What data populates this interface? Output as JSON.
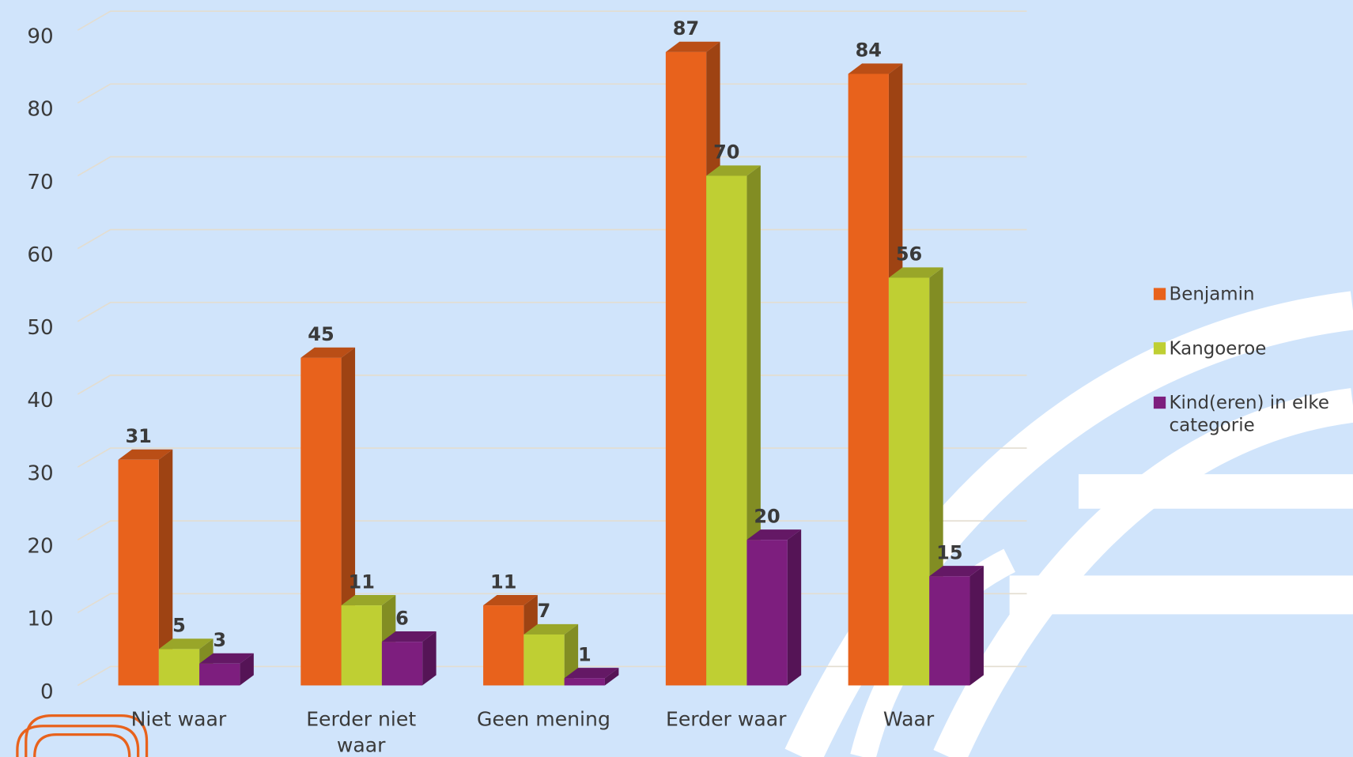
{
  "chart_data": {
    "type": "bar3d",
    "categories": [
      "Niet waar",
      "Eerder niet waar",
      "Geen mening",
      "Eerder waar",
      "Waar"
    ],
    "series": [
      {
        "name": "Benjamin",
        "color": "#e8621c",
        "values": [
          31,
          45,
          11,
          87,
          84
        ]
      },
      {
        "name": "Kangoeroe",
        "color": "#bfcf33",
        "values": [
          5,
          11,
          7,
          70,
          56
        ]
      },
      {
        "name": "Kind(eren) in elke categorie",
        "color": "#7d1e7e",
        "values": [
          3,
          6,
          1,
          20,
          15
        ]
      }
    ],
    "ylim": [
      0,
      90
    ],
    "yticks": [
      0,
      10,
      20,
      30,
      40,
      50,
      60,
      70,
      80,
      90
    ],
    "grid": true,
    "legend": "right"
  }
}
